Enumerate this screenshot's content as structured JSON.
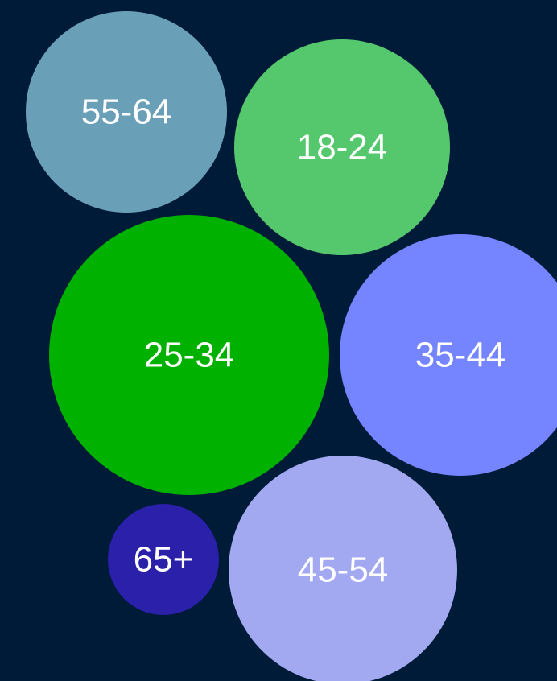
{
  "background_color": "#001b38",
  "chart_data": {
    "type": "bubble",
    "title": "",
    "legend": "none",
    "grid": false,
    "bubbles": [
      {
        "label": "55-64",
        "color": "#6a9fb8"
      },
      {
        "label": "18-24",
        "color": "#55c86e"
      },
      {
        "label": "25-34",
        "color": "#00b100"
      },
      {
        "label": "35-44",
        "color": "#7585ff"
      },
      {
        "label": "65+",
        "color": "#2a20aa"
      },
      {
        "label": "45-54",
        "color": "#a2a9f1"
      }
    ]
  }
}
